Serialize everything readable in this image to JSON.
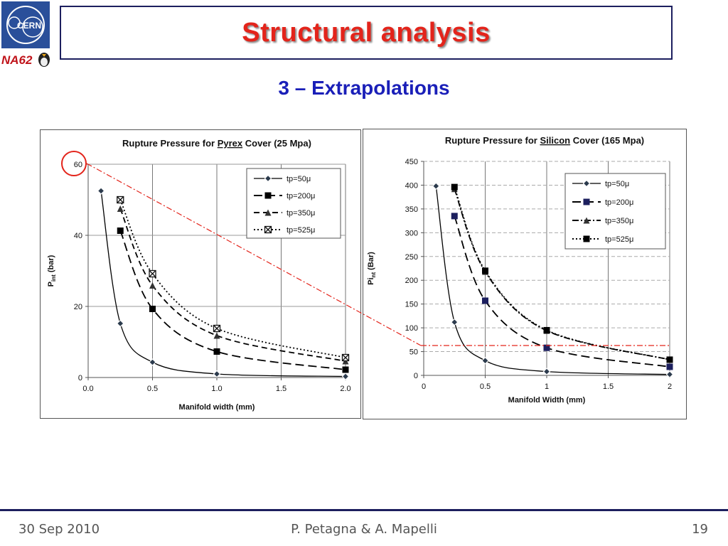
{
  "header": {
    "title": "Structural analysis",
    "subtitle": "3 – Extrapolations",
    "logo_cern_text": "CERN",
    "logo_na62_text": "NA62"
  },
  "footer": {
    "date": "30 Sep 2010",
    "authors": "P. Petagna & A. Mapelli",
    "page": "19"
  },
  "colors": {
    "title_red": "#e3241b",
    "subtitle_blue": "#1a1fb8",
    "frame_navy": "#1c1f5e",
    "annotation_red": "#e3241b"
  },
  "chart_data": [
    {
      "type": "line",
      "title_prefix": "Rupture Pressure for ",
      "title_material": "Pyrex",
      "title_suffix": " Cover (25 Mpa)",
      "xlabel": "Manifold width (mm)",
      "ylabel": "P",
      "ylabel_sub": "int",
      "ylabel_unit": " (bar)",
      "xlim": [
        0,
        2
      ],
      "ylim": [
        0,
        60
      ],
      "xticks": [
        "0.0",
        "0.5",
        "1.0",
        "1.5",
        "2.0"
      ],
      "xtick_values": [
        0,
        0.5,
        1,
        1.5,
        2
      ],
      "yticks": [
        "0",
        "20",
        "40",
        "60"
      ],
      "ytick_values": [
        0,
        20,
        40,
        60
      ],
      "grid": "vertical and horizontal",
      "legend": "top-right",
      "series": [
        {
          "name": "tp=50μ",
          "marker": "diamond",
          "dash": "solid",
          "x": [
            0.1,
            0.25,
            0.5,
            1.0,
            2.0
          ],
          "y": [
            52.5,
            15.2,
            4.3,
            1.0,
            0.3
          ]
        },
        {
          "name": "tp=200μ",
          "marker": "square",
          "dash": "longdash",
          "x": [
            0.25,
            0.5,
            1.0,
            2.0
          ],
          "y": [
            41.3,
            19.3,
            7.3,
            2.2
          ]
        },
        {
          "name": "tp=350μ",
          "marker": "triangle",
          "dash": "dash",
          "x": [
            0.25,
            0.5,
            1.0,
            2.0
          ],
          "y": [
            47.5,
            25.9,
            11.8,
            4.6
          ]
        },
        {
          "name": "tp=525μ",
          "marker": "xsquare",
          "dash": "dot",
          "x": [
            0.25,
            0.5,
            1.0,
            2.0
          ],
          "y": [
            50.0,
            29.2,
            13.8,
            5.6
          ]
        }
      ]
    },
    {
      "type": "line",
      "title_prefix": "Rupture Pressure for ",
      "title_material": "Silicon",
      "title_suffix": " Cover (165 Mpa)",
      "xlabel": "Manifold Width (mm)",
      "ylabel": "Pi",
      "ylabel_sub": "nt",
      "ylabel_unit": " (Bar)",
      "xlim": [
        0,
        2
      ],
      "ylim": [
        0,
        450
      ],
      "xticks": [
        "0",
        "0.5",
        "1",
        "1.5",
        "2"
      ],
      "xtick_values": [
        0,
        0.5,
        1,
        1.5,
        2
      ],
      "yticks": [
        "0",
        "50",
        "100",
        "150",
        "200",
        "250",
        "300",
        "350",
        "400",
        "450"
      ],
      "ytick_values": [
        0,
        50,
        100,
        150,
        200,
        250,
        300,
        350,
        400,
        450
      ],
      "grid": "vertical and horizontal",
      "legend": "top-right",
      "series": [
        {
          "name": "tp=50μ",
          "marker": "diamond",
          "dash": "solid",
          "x": [
            0.1,
            0.25,
            0.5,
            1.0,
            2.0
          ],
          "y": [
            398,
            112,
            31,
            8,
            2
          ]
        },
        {
          "name": "tp=200μ",
          "marker": "square",
          "dash": "longdash",
          "x": [
            0.25,
            0.5,
            1.0,
            2.0
          ],
          "y": [
            335,
            157,
            58,
            18
          ]
        },
        {
          "name": "tp=350μ",
          "marker": "triangle",
          "dash": "dashdot",
          "x": [
            0.25,
            0.5,
            1.0,
            2.0
          ],
          "y": [
            392,
            218,
            94,
            33
          ]
        },
        {
          "name": "tp=525μ",
          "marker": "square",
          "dash": "dot",
          "x": [
            0.25,
            0.5,
            1.0,
            2.0
          ],
          "y": [
            396,
            220,
            95,
            33
          ]
        }
      ]
    }
  ]
}
